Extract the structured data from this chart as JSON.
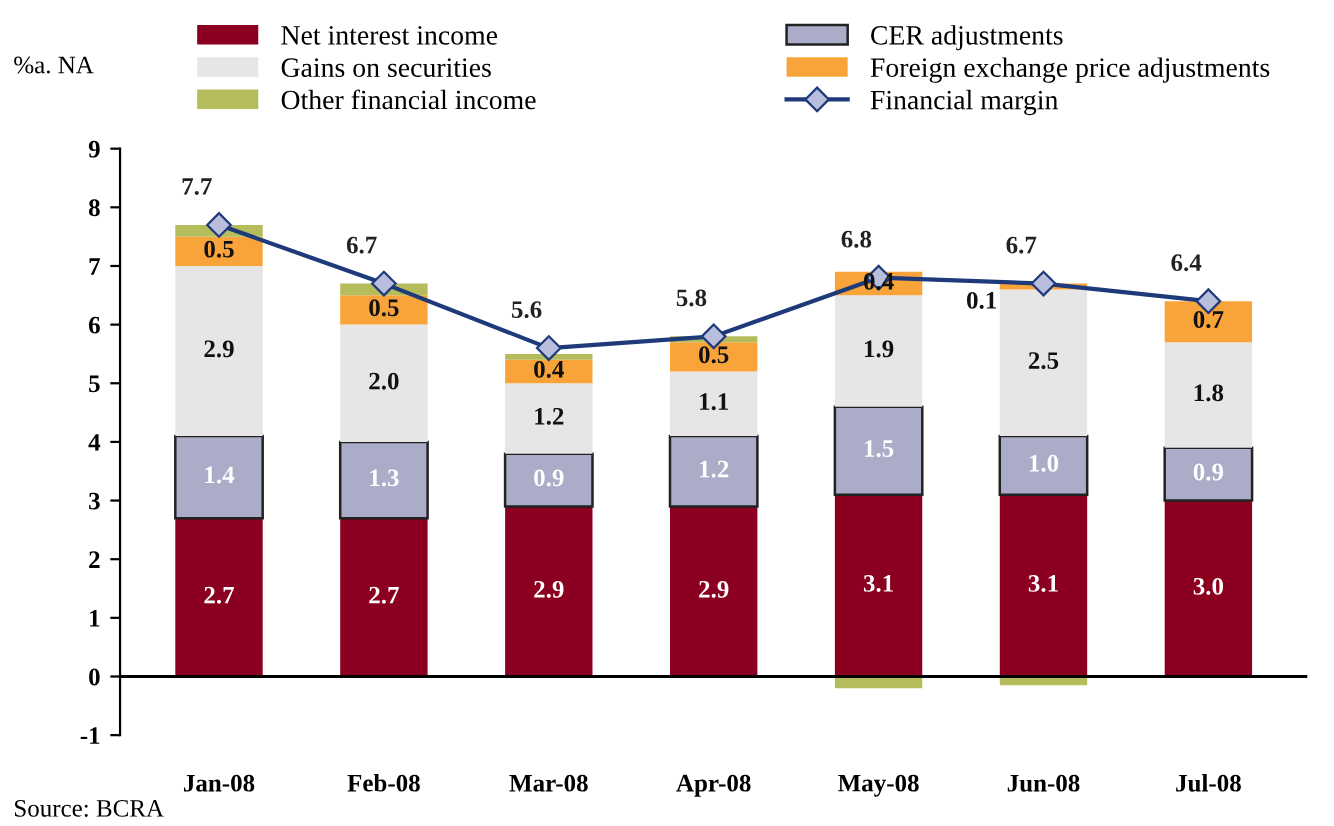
{
  "chart_data": {
    "type": "bar",
    "stacked": true,
    "ylabel": "%a. NA",
    "categories": [
      "Jan-08",
      "Feb-08",
      "Mar-08",
      "Apr-08",
      "May-08",
      "Jun-08",
      "Jul-08"
    ],
    "series": [
      {
        "name": "Net interest income",
        "color": "#8b0020",
        "values": [
          2.7,
          2.7,
          2.9,
          2.9,
          3.1,
          3.1,
          3.0
        ],
        "value_labels": [
          "2.7",
          "2.7",
          "2.9",
          "2.9",
          "3.1",
          "3.1",
          "3.0"
        ]
      },
      {
        "name": "CER adjustments",
        "color": "#abadc8",
        "values": [
          1.4,
          1.3,
          0.9,
          1.2,
          1.5,
          1.0,
          0.9
        ],
        "value_labels": [
          "1.4",
          "1.3",
          "0.9",
          "1.2",
          "1.5",
          "1.0",
          "0.9"
        ]
      },
      {
        "name": "Gains on securities",
        "color": "#e6e6e6",
        "values": [
          2.9,
          2.0,
          1.2,
          1.1,
          1.9,
          2.5,
          1.8
        ],
        "value_labels": [
          "2.9",
          "2.0",
          "1.2",
          "1.1",
          "1.9",
          "2.5",
          "1.8"
        ]
      },
      {
        "name": "Foreign exchange price adjustments",
        "color": "#f9a43a",
        "values": [
          0.5,
          0.5,
          0.4,
          0.5,
          0.4,
          0.1,
          0.7
        ],
        "value_labels": [
          "0.5",
          "0.5",
          "0.4",
          "0.5",
          "0.4",
          "0.1",
          "0.7"
        ]
      },
      {
        "name": "Other financial income",
        "color": "#b5bc5c",
        "values": [
          0.2,
          0.2,
          0.1,
          0.1,
          -0.2,
          -0.15,
          0.0
        ]
      },
      {
        "name": "Financial margin",
        "type": "line",
        "color": "#1f3a7a",
        "marker": "diamond",
        "values": [
          7.7,
          6.7,
          5.6,
          5.8,
          6.8,
          6.7,
          6.4
        ],
        "value_labels": [
          "7.7",
          "6.7",
          "5.6",
          "5.8",
          "6.8",
          "6.7",
          "6.4"
        ]
      }
    ],
    "ylim": [
      -1,
      9
    ],
    "yticks": [
      -1,
      0,
      1,
      2,
      3,
      4,
      5,
      6,
      7,
      8,
      9
    ],
    "ref_lines": [
      {
        "axis": "y",
        "value": 0,
        "color": "#000000"
      }
    ],
    "grid": false,
    "legend": "top",
    "annotations": [
      "Source: BCRA"
    ]
  }
}
